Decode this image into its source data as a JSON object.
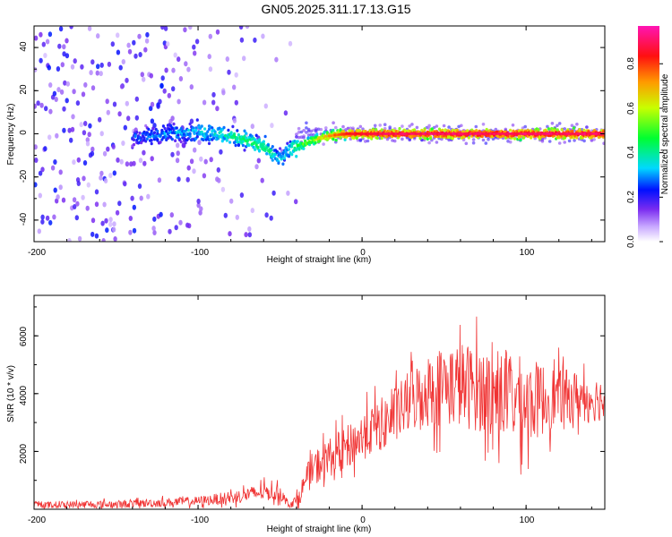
{
  "chart_data": [
    {
      "type": "heatmap",
      "title": "GN05.2025.311.17.13.G15",
      "xlabel": "Height of straight line (km)",
      "ylabel": "Frequency (Hz)",
      "xlim": [
        -200,
        148
      ],
      "ylim": [
        -50,
        50
      ],
      "xticks": [
        "-200",
        "-100",
        "0",
        "100"
      ],
      "yticks": [
        "-40",
        "-20",
        "0",
        "20",
        "40"
      ],
      "colorbar": {
        "label": "Normalized spectral amplitude",
        "range": [
          0,
          0.97
        ],
        "ticks": [
          "0.0",
          "0.2",
          "0.4",
          "0.6",
          "0.8"
        ]
      },
      "ridge": {
        "x": [
          -140,
          -120,
          -100,
          -80,
          -70,
          -60,
          -50,
          -45,
          -40,
          -30,
          -20,
          -10,
          0,
          20,
          50,
          100,
          148
        ],
        "freq": [
          -2,
          0,
          1,
          -1,
          -3,
          -6,
          -12,
          -8,
          -6,
          -3,
          -1,
          0,
          0,
          0,
          0,
          0,
          0
        ],
        "amplitude": [
          0.25,
          0.3,
          0.35,
          0.4,
          0.45,
          0.45,
          0.35,
          0.35,
          0.5,
          0.6,
          0.75,
          0.85,
          0.9,
          0.92,
          0.93,
          0.93,
          0.93
        ]
      }
    },
    {
      "type": "line",
      "xlabel": "Height of straight line (km)",
      "ylabel": "SNR (10 * v/v)",
      "xlim": [
        -200,
        148
      ],
      "ylim": [
        0,
        7400
      ],
      "xticks": [
        "-200",
        "-100",
        "0",
        "100"
      ],
      "yticks": [
        "2000",
        "4000",
        "6000"
      ],
      "color": "#f03232",
      "envelope": {
        "x": [
          -200,
          -150,
          -100,
          -80,
          -60,
          -50,
          -45,
          -40,
          -35,
          -30,
          -20,
          -10,
          0,
          10,
          20,
          30,
          40,
          50,
          60,
          70,
          80,
          90,
          100,
          110,
          120,
          130,
          148
        ],
        "mean": [
          150,
          170,
          280,
          400,
          600,
          550,
          200,
          250,
          900,
          1400,
          1800,
          2100,
          2500,
          2900,
          3200,
          3800,
          4100,
          4300,
          4300,
          4200,
          4000,
          3900,
          3700,
          3800,
          3900,
          3900,
          3800
        ],
        "spread": [
          150,
          180,
          220,
          300,
          400,
          350,
          150,
          300,
          600,
          800,
          900,
          1000,
          1100,
          1200,
          1300,
          1500,
          1700,
          1900,
          2000,
          2000,
          2000,
          2100,
          2000,
          1700,
          1300,
          1200,
          1000
        ]
      }
    }
  ]
}
